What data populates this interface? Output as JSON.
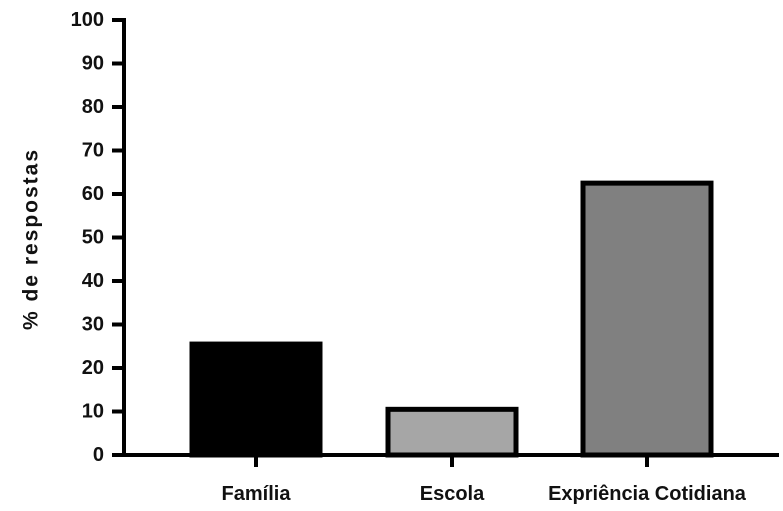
{
  "chart_data": {
    "type": "bar",
    "categories": [
      "Família",
      "Escola",
      "Expriência Cotidiana"
    ],
    "values": [
      25.5,
      10.5,
      62.5
    ],
    "ylabel": "% de respostas",
    "ylim": [
      0,
      100
    ],
    "yticks": [
      0,
      10,
      20,
      30,
      40,
      50,
      60,
      70,
      80,
      90,
      100
    ],
    "grid": false,
    "bar_colors": [
      "#000000",
      "#a6a6a6",
      "#808080"
    ],
    "bar_edge_color": "#000000"
  }
}
